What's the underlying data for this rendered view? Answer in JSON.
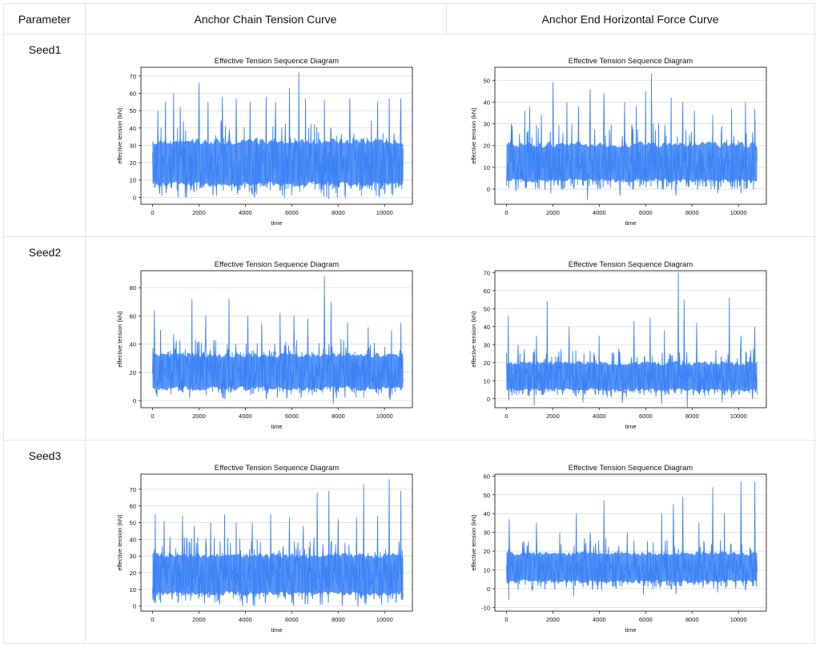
{
  "table": {
    "headers": [
      "Parameter",
      "Anchor Chain Tension Curve",
      "Anchor End Horizontal Force Curve"
    ],
    "rows": [
      {
        "label": "Seed1"
      },
      {
        "label": "Seed2"
      },
      {
        "label": "Seed3"
      }
    ]
  },
  "colors": {
    "line": "#3b82f6",
    "grid": "#d9d9d9",
    "frame": "#222222"
  },
  "chart_data": [
    {
      "id": "s1-chain",
      "type": "line",
      "title": "Effective Tension Sequence Diagram",
      "xlabel": "time",
      "ylabel": "effective tension (kN)",
      "xlim": [
        -500,
        11200
      ],
      "ylim": [
        -4,
        75
      ],
      "xticks": [
        0,
        2000,
        4000,
        6000,
        8000,
        10000
      ],
      "yticks": [
        0,
        10,
        20,
        30,
        40,
        50,
        60,
        70
      ],
      "grid": "horizontal",
      "series": [
        {
          "name": "effective tension",
          "x_range": [
            0,
            10800
          ],
          "baseline": 19,
          "band_low": 6,
          "band_high": 34,
          "peaks": [
            [
              240,
              50
            ],
            [
              560,
              55
            ],
            [
              900,
              60
            ],
            [
              1200,
              52
            ],
            [
              2000,
              66
            ],
            [
              2400,
              55
            ],
            [
              3000,
              58
            ],
            [
              3600,
              57
            ],
            [
              4200,
              55
            ],
            [
              4900,
              58
            ],
            [
              5300,
              55
            ],
            [
              5900,
              63
            ],
            [
              6300,
              72
            ],
            [
              6600,
              57
            ],
            [
              7400,
              56
            ],
            [
              8500,
              57
            ],
            [
              9700,
              55
            ],
            [
              10200,
              57
            ],
            [
              10700,
              57
            ]
          ],
          "dips": [
            [
              300,
              2
            ],
            [
              1400,
              0
            ],
            [
              2600,
              1
            ],
            [
              4400,
              0
            ],
            [
              5600,
              1
            ],
            [
              7600,
              -1
            ],
            [
              9000,
              1
            ],
            [
              10300,
              2
            ]
          ]
        }
      ]
    },
    {
      "id": "s1-anchor",
      "type": "line",
      "title": "Effective Tension Sequence Diagram",
      "xlabel": "time",
      "ylabel": "effective tension (kN)",
      "xlim": [
        -500,
        11200
      ],
      "ylim": [
        -7,
        56
      ],
      "xticks": [
        0,
        2000,
        4000,
        6000,
        8000,
        10000
      ],
      "yticks": [
        0,
        10,
        20,
        30,
        40,
        50
      ],
      "grid": "horizontal",
      "series": [
        {
          "name": "effective tension",
          "x_range": [
            0,
            10800
          ],
          "baseline": 10,
          "band_low": 3,
          "band_high": 22,
          "peaks": [
            [
              220,
              30
            ],
            [
              800,
              36
            ],
            [
              1000,
              38
            ],
            [
              1500,
              34
            ],
            [
              2000,
              49
            ],
            [
              2600,
              40
            ],
            [
              3100,
              38
            ],
            [
              3600,
              46
            ],
            [
              4200,
              44
            ],
            [
              5100,
              40
            ],
            [
              5600,
              38
            ],
            [
              6000,
              45
            ],
            [
              6250,
              53
            ],
            [
              7100,
              42
            ],
            [
              7600,
              40
            ],
            [
              8100,
              36
            ],
            [
              8900,
              34
            ],
            [
              9700,
              37
            ],
            [
              10300,
              40
            ],
            [
              10700,
              37
            ]
          ],
          "dips": [
            [
              400,
              -1
            ],
            [
              1900,
              -2
            ],
            [
              3500,
              -5
            ],
            [
              4900,
              -3
            ],
            [
              7300,
              -3
            ],
            [
              9100,
              -2
            ],
            [
              10100,
              -2
            ]
          ]
        }
      ]
    },
    {
      "id": "s2-chain",
      "type": "line",
      "title": "Effective Tension Sequence Diagram",
      "xlabel": "time",
      "ylabel": "effective tension (kN)",
      "xlim": [
        -500,
        11200
      ],
      "ylim": [
        -5,
        92
      ],
      "xticks": [
        0,
        2000,
        4000,
        6000,
        8000,
        10000
      ],
      "yticks": [
        0,
        20,
        40,
        60,
        80
      ],
      "grid": "horizontal",
      "series": [
        {
          "name": "effective tension",
          "x_range": [
            0,
            10800
          ],
          "baseline": 20,
          "band_low": 7,
          "band_high": 34,
          "peaks": [
            [
              80,
              64
            ],
            [
              350,
              50
            ],
            [
              900,
              47
            ],
            [
              1700,
              72
            ],
            [
              2300,
              60
            ],
            [
              3300,
              72
            ],
            [
              4100,
              60
            ],
            [
              4700,
              55
            ],
            [
              5500,
              62
            ],
            [
              6100,
              60
            ],
            [
              6700,
              58
            ],
            [
              7400,
              88
            ],
            [
              7700,
              70
            ],
            [
              8400,
              55
            ],
            [
              9300,
              52
            ],
            [
              10300,
              50
            ],
            [
              10700,
              55
            ]
          ],
          "dips": [
            [
              200,
              3
            ],
            [
              1600,
              2
            ],
            [
              3000,
              2
            ],
            [
              4900,
              1
            ],
            [
              6400,
              2
            ],
            [
              7800,
              -2
            ],
            [
              9100,
              2
            ],
            [
              10200,
              2
            ]
          ]
        }
      ]
    },
    {
      "id": "s2-anchor",
      "type": "line",
      "title": "Effective Tension Sequence Diagram",
      "xlabel": "time",
      "ylabel": "effective tension (kN)",
      "xlim": [
        -500,
        11200
      ],
      "ylim": [
        -5,
        71
      ],
      "xticks": [
        0,
        2000,
        4000,
        6000,
        8000,
        10000
      ],
      "yticks": [
        0,
        10,
        20,
        30,
        40,
        50,
        60,
        70
      ],
      "grid": "horizontal",
      "series": [
        {
          "name": "effective tension",
          "x_range": [
            0,
            10800
          ],
          "baseline": 11,
          "band_low": 4,
          "band_high": 21,
          "peaks": [
            [
              80,
              46
            ],
            [
              500,
              30
            ],
            [
              1300,
              35
            ],
            [
              1750,
              54
            ],
            [
              2700,
              40
            ],
            [
              3300,
              53
            ],
            [
              4000,
              35
            ],
            [
              5500,
              43
            ],
            [
              6200,
              45
            ],
            [
              6800,
              38
            ],
            [
              7400,
              70
            ],
            [
              7650,
              55
            ],
            [
              8200,
              42
            ],
            [
              9600,
              56
            ],
            [
              10100,
              35
            ],
            [
              10700,
              40
            ]
          ],
          "dips": [
            [
              100,
              -1
            ],
            [
              1200,
              -4
            ],
            [
              3300,
              -2
            ],
            [
              5000,
              -2
            ],
            [
              6700,
              -3
            ],
            [
              7800,
              -5
            ],
            [
              9300,
              -2
            ],
            [
              10600,
              0
            ]
          ]
        }
      ]
    },
    {
      "id": "s3-chain",
      "type": "line",
      "title": "Effective Tension Sequence Diagram",
      "xlabel": "time",
      "ylabel": "effective tension (kN)",
      "xlim": [
        -500,
        11200
      ],
      "ylim": [
        -3,
        79
      ],
      "xticks": [
        0,
        2000,
        4000,
        6000,
        8000,
        10000
      ],
      "yticks": [
        0,
        10,
        20,
        30,
        40,
        50,
        60,
        70
      ],
      "grid": "horizontal",
      "series": [
        {
          "name": "effective tension",
          "x_range": [
            0,
            10800
          ],
          "baseline": 18,
          "band_low": 6,
          "band_high": 32,
          "peaks": [
            [
              120,
              55
            ],
            [
              500,
              51
            ],
            [
              1300,
              54
            ],
            [
              1800,
              48
            ],
            [
              2500,
              50
            ],
            [
              3100,
              55
            ],
            [
              3600,
              50
            ],
            [
              4300,
              50
            ],
            [
              5100,
              55
            ],
            [
              5900,
              53
            ],
            [
              6500,
              48
            ],
            [
              7100,
              68
            ],
            [
              7600,
              69
            ],
            [
              8000,
              52
            ],
            [
              8800,
              53
            ],
            [
              9100,
              73
            ],
            [
              9700,
              54
            ],
            [
              10200,
              76
            ],
            [
              10700,
              69
            ]
          ],
          "dips": [
            [
              100,
              3
            ],
            [
              1100,
              2
            ],
            [
              2900,
              1
            ],
            [
              4400,
              0
            ],
            [
              6000,
              2
            ],
            [
              7300,
              1
            ],
            [
              9200,
              1
            ],
            [
              10500,
              2
            ]
          ]
        }
      ]
    },
    {
      "id": "s3-anchor",
      "type": "line",
      "title": "Effective Tension Sequence Diagram",
      "xlabel": "time",
      "ylabel": "effective tension (kN)",
      "xlim": [
        -500,
        11200
      ],
      "ylim": [
        -12,
        61
      ],
      "xticks": [
        0,
        2000,
        4000,
        6000,
        8000,
        10000
      ],
      "yticks": [
        -10,
        0,
        10,
        20,
        30,
        40,
        50,
        60
      ],
      "grid": "horizontal",
      "series": [
        {
          "name": "effective tension",
          "x_range": [
            0,
            10800
          ],
          "baseline": 10,
          "band_low": 3,
          "band_high": 20,
          "peaks": [
            [
              120,
              37
            ],
            [
              700,
              25
            ],
            [
              1300,
              35
            ],
            [
              2300,
              30
            ],
            [
              3000,
              40
            ],
            [
              3600,
              30
            ],
            [
              4200,
              47
            ],
            [
              5200,
              30
            ],
            [
              5900,
              35
            ],
            [
              6700,
              40
            ],
            [
              7200,
              45
            ],
            [
              7600,
              49
            ],
            [
              8300,
              35
            ],
            [
              8900,
              54
            ],
            [
              9400,
              40
            ],
            [
              10100,
              57
            ],
            [
              10700,
              57
            ]
          ],
          "dips": [
            [
              100,
              -6
            ],
            [
              1100,
              -1
            ],
            [
              2900,
              -4
            ],
            [
              4100,
              -1
            ],
            [
              5900,
              -3
            ],
            [
              7300,
              -3
            ],
            [
              9100,
              -2
            ],
            [
              10300,
              -1
            ]
          ]
        }
      ]
    }
  ]
}
